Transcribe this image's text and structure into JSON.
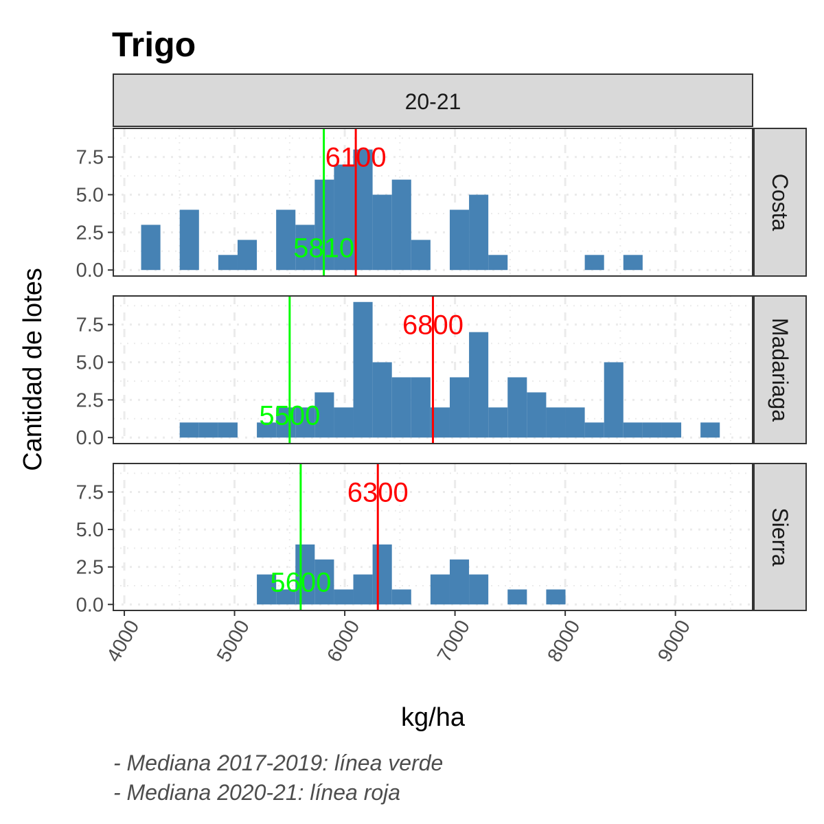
{
  "chart_data": {
    "type": "bar",
    "chart_kind": "faceted histogram",
    "title": "Trigo",
    "column_strip": "20-21",
    "xlabel": "kg/ha",
    "ylabel": "Cantidad de lotes",
    "xlim": [
      3900,
      9700
    ],
    "ylim": [
      -0.4,
      9.4
    ],
    "x_ticks": [
      4000,
      5000,
      6000,
      7000,
      8000,
      9000
    ],
    "x_tick_labels": [
      "4000",
      "5000",
      "6000",
      "7000",
      "8000",
      "9000"
    ],
    "y_ticks": [
      0,
      2.5,
      5,
      7.5
    ],
    "y_tick_labels": [
      "0.0",
      "2.5",
      "5.0",
      "7.5"
    ],
    "bin_width": 175,
    "grid": true,
    "bar_color": "#4682B4",
    "median_old_color": "#00FF00",
    "median_new_color": "#FF0000",
    "panels": [
      {
        "strip": "Costa",
        "bin_centers": [
          4240,
          4590,
          4940,
          5115,
          5465,
          5640,
          5815,
          5990,
          6165,
          6340,
          6515,
          6690,
          7040,
          7215,
          7390,
          8265,
          8615
        ],
        "counts": [
          3,
          4,
          1,
          2,
          4,
          3,
          6,
          7,
          8,
          5,
          6,
          2,
          4,
          5,
          1,
          1,
          1
        ],
        "median_old": 5810,
        "median_old_label": "5810",
        "median_new": 6100,
        "median_new_label": "6100"
      },
      {
        "strip": "Madariaga",
        "bin_centers": [
          4590,
          4765,
          4940,
          5290,
          5465,
          5640,
          5815,
          5990,
          6165,
          6340,
          6515,
          6690,
          6865,
          7040,
          7215,
          7390,
          7565,
          7740,
          7915,
          8090,
          8265,
          8440,
          8615,
          8790,
          8965,
          9315
        ],
        "counts": [
          1,
          1,
          1,
          1,
          2,
          2,
          3,
          2,
          9,
          5,
          4,
          4,
          2,
          4,
          7,
          2,
          4,
          3,
          2,
          2,
          1,
          5,
          1,
          1,
          1,
          1
        ],
        "median_old": 5500,
        "median_old_label": "5500",
        "median_new": 6800,
        "median_new_label": "6800"
      },
      {
        "strip": "Sierra",
        "bin_centers": [
          5290,
          5465,
          5640,
          5815,
          5990,
          6165,
          6340,
          6515,
          6865,
          7040,
          7215,
          7565,
          7915
        ],
        "counts": [
          2,
          1,
          4,
          3,
          1,
          2,
          4,
          1,
          2,
          3,
          2,
          1,
          1
        ],
        "median_old": 5600,
        "median_old_label": "5600",
        "median_new": 6300,
        "median_new_label": "6300"
      }
    ],
    "caption_lines": [
      "- Mediana 2017-2019: línea verde",
      "- Mediana 2020-21: línea roja"
    ]
  }
}
